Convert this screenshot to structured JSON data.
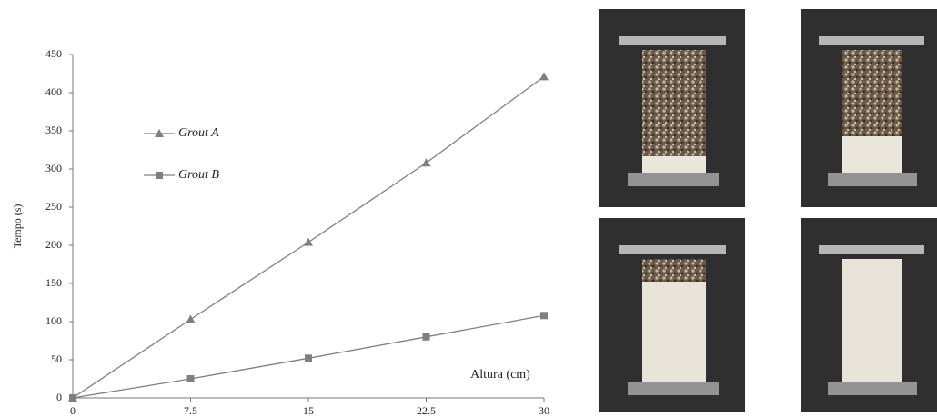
{
  "chart_data": {
    "type": "line",
    "x": [
      0,
      7.5,
      15,
      22.5,
      30
    ],
    "series": [
      {
        "name": "Grout A",
        "color": "#7f7f7f",
        "marker": "triangle",
        "values": [
          0,
          103,
          204,
          308,
          421
        ]
      },
      {
        "name": "Grout B",
        "color": "#7f7f7f",
        "marker": "square",
        "values": [
          0,
          25,
          52,
          80,
          108
        ]
      }
    ],
    "xlabel": "Altura (cm)",
    "ylabel": "Tempo (s)",
    "xlim": [
      0,
      30
    ],
    "xticks": [
      0,
      7.5,
      15,
      22.5,
      30
    ],
    "ylim": [
      0,
      450
    ],
    "yticks": [
      0,
      50,
      100,
      150,
      200,
      250,
      300,
      350,
      400,
      450
    ],
    "grid": false,
    "legend": "upper left"
  }
}
